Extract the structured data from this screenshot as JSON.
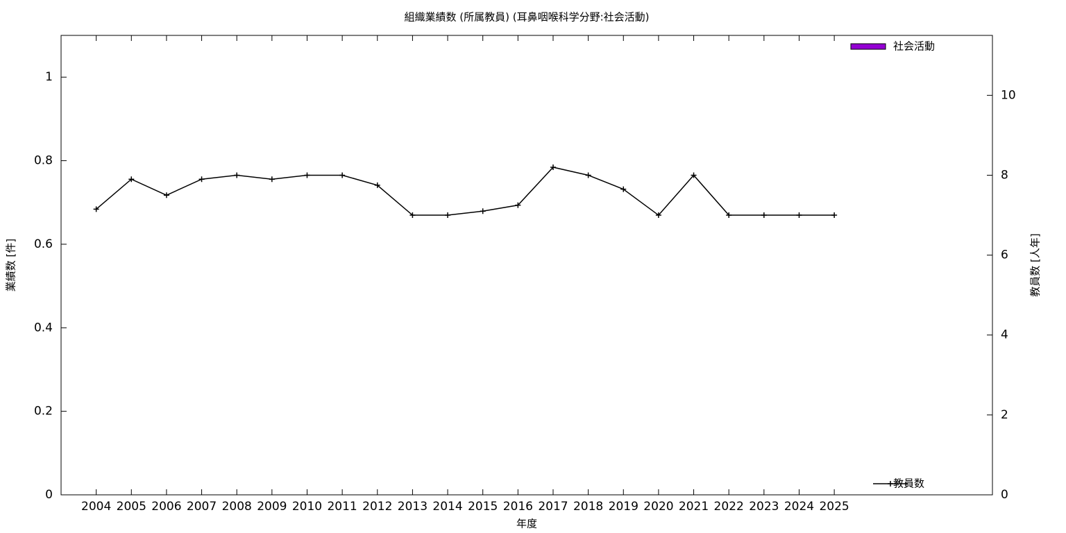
{
  "chart_data": {
    "type": "bar-line",
    "title": "組織業績数 (所属教員) (耳鼻咽喉科学分野:社会活動)",
    "x_label": "年度",
    "y_label": "業績数 [件]",
    "y2_label": "教員数 [人年]",
    "x": [
      2004,
      2005,
      2006,
      2007,
      2008,
      2009,
      2010,
      2011,
      2012,
      2013,
      2014,
      2015,
      2016,
      2017,
      2018,
      2019,
      2020,
      2021,
      2022,
      2023,
      2024,
      2025
    ],
    "xlim": [
      2003,
      2029.5
    ],
    "xticks": [
      2004,
      2005,
      2006,
      2007,
      2008,
      2009,
      2010,
      2011,
      2012,
      2013,
      2014,
      2015,
      2016,
      2017,
      2018,
      2019,
      2020,
      2021,
      2022,
      2023,
      2024,
      2025
    ],
    "ylim": [
      0,
      1.1
    ],
    "yticks": [
      0,
      0.2,
      0.4,
      0.6,
      0.8,
      1
    ],
    "y2lim": [
      0,
      11.5
    ],
    "y2ticks": [
      0,
      2,
      4,
      6,
      8,
      10
    ],
    "series": [
      {
        "name": "社会活動",
        "type": "bar",
        "color": "#9400d3",
        "axis": "y",
        "legend": "top-right",
        "values": [
          0,
          0,
          0,
          0,
          0,
          0,
          0,
          0,
          0,
          0,
          0,
          0,
          0,
          0,
          0,
          0,
          0,
          0,
          0,
          0,
          0,
          0
        ]
      },
      {
        "name": "教員数",
        "type": "line",
        "color": "#000000",
        "axis": "y2",
        "legend": "bottom-right",
        "values": [
          7.15,
          7.9,
          7.5,
          7.9,
          8,
          7.9,
          8,
          8,
          7.75,
          7,
          7,
          7.1,
          7.25,
          8.2,
          8,
          7.65,
          7,
          8,
          7,
          7,
          7,
          7
        ]
      }
    ]
  }
}
